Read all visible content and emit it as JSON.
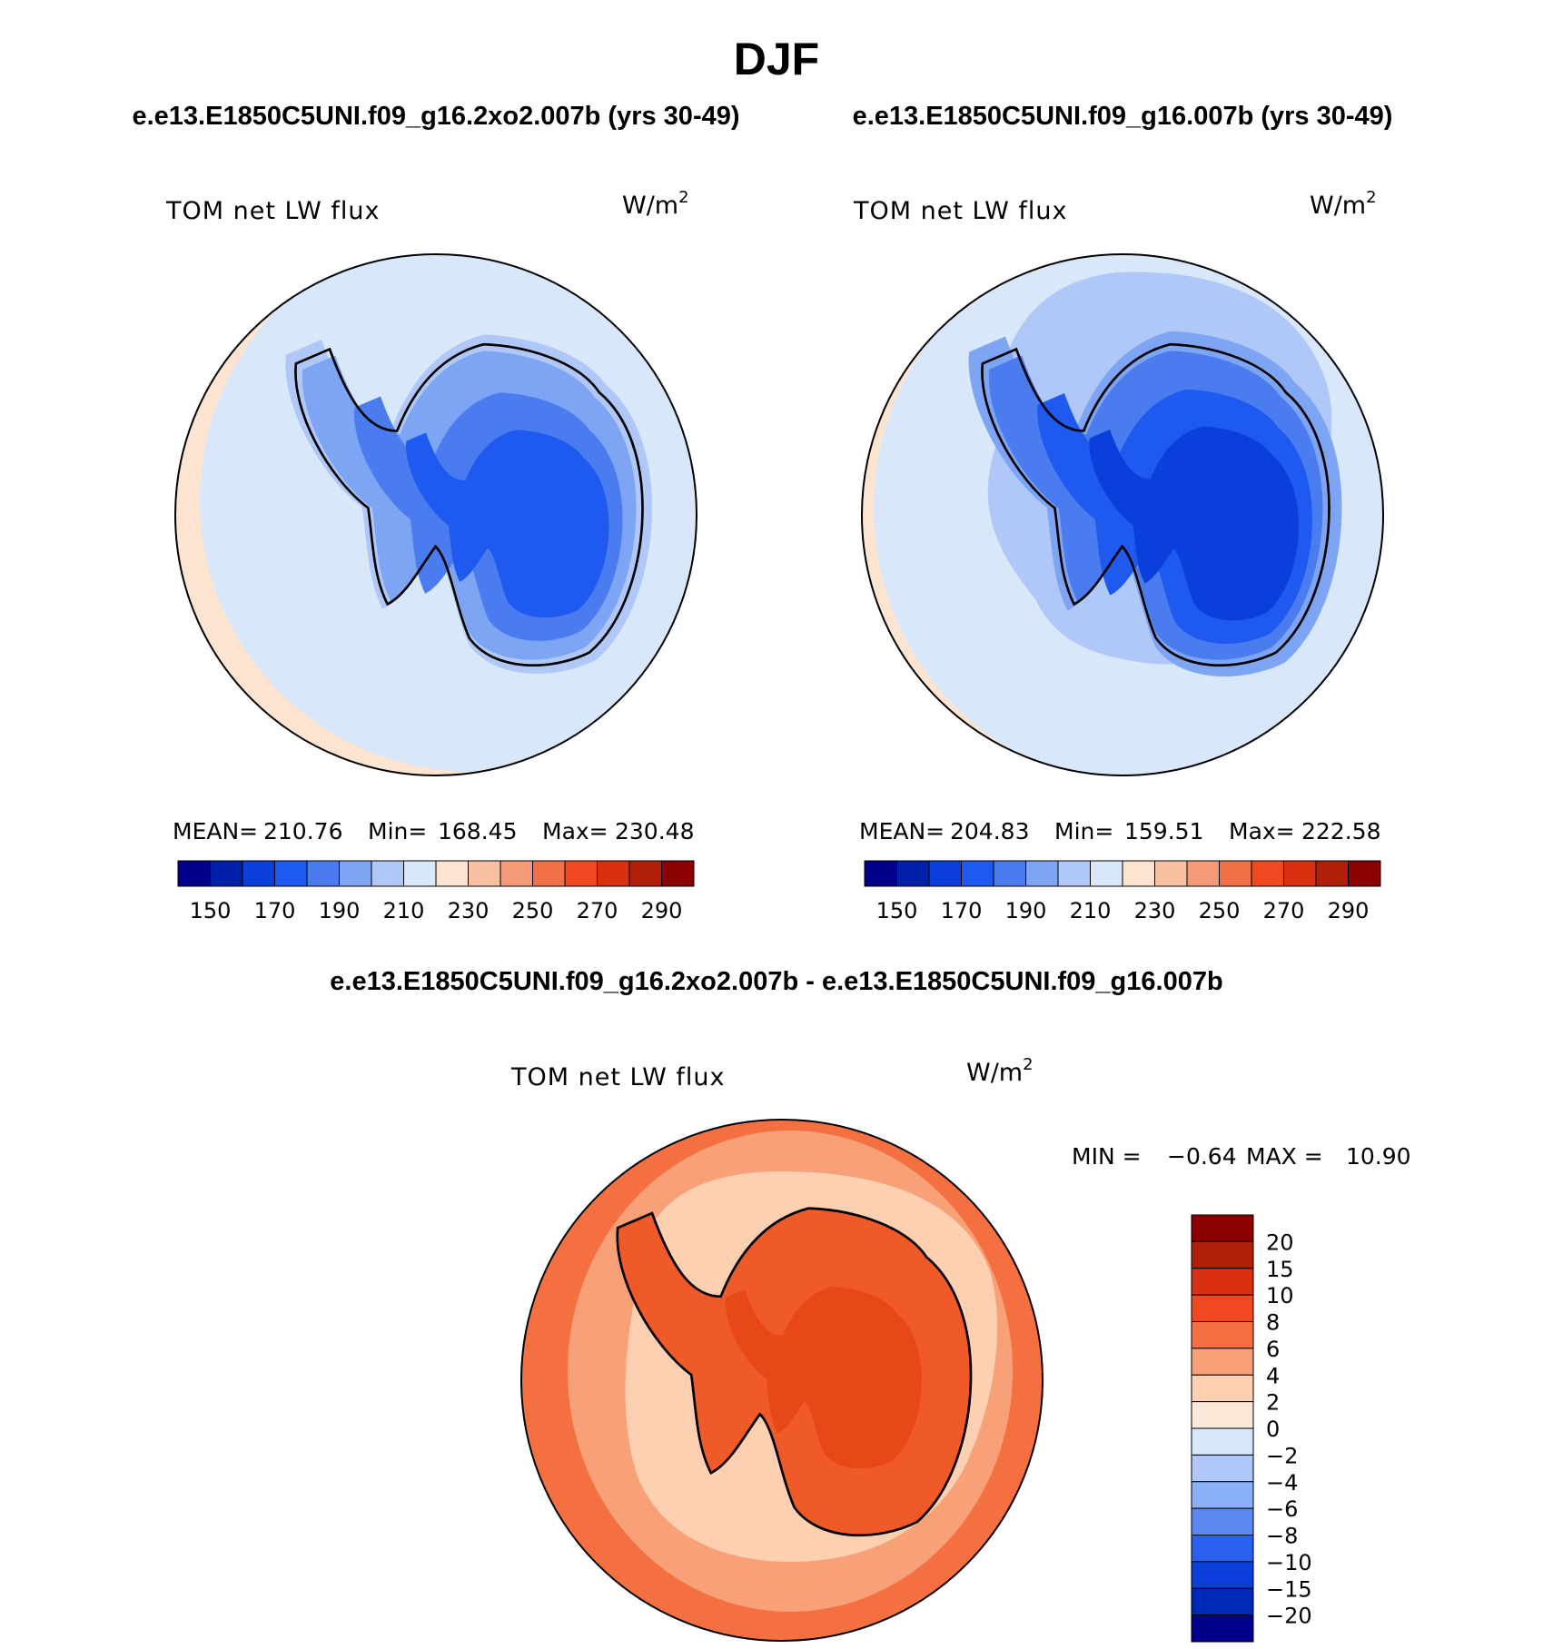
{
  "figure": {
    "title": "DJF"
  },
  "chart_data": [
    {
      "type": "heatmap",
      "subtitle": "e.e13.E1850C5UNI.f09_g16.2xo2.007b (yrs 30-49)",
      "variable": "TOM net LW flux",
      "units": "W/m",
      "units_exp": "2",
      "stats": {
        "mean_label": "MEAN=",
        "mean": "210.76",
        "min_label": "Min=",
        "min": "168.45",
        "max_label": "Max=",
        "max": "230.48"
      },
      "colorbar": {
        "orientation": "horizontal",
        "colors": [
          "#00008b",
          "#0020a8",
          "#0a3fdc",
          "#1e5af0",
          "#4a7cf0",
          "#7ea4f4",
          "#b0c8f8",
          "#d8e8fa",
          "#fce4d0",
          "#f8c0a0",
          "#f49a78",
          "#f07048",
          "#f04820",
          "#d83010",
          "#b02008",
          "#8b0000"
        ],
        "labels": [
          "150",
          "170",
          "190",
          "210",
          "230",
          "250",
          "270",
          "290"
        ]
      }
    },
    {
      "type": "heatmap",
      "subtitle": "e.e13.E1850C5UNI.f09_g16.007b (yrs 30-49)",
      "variable": "TOM net LW flux",
      "units": "W/m",
      "units_exp": "2",
      "stats": {
        "mean_label": "MEAN=",
        "mean": "204.83",
        "min_label": "Min=",
        "min": "159.51",
        "max_label": "Max=",
        "max": "222.58"
      },
      "colorbar": {
        "orientation": "horizontal",
        "colors": [
          "#00008b",
          "#0020a8",
          "#0a3fdc",
          "#1e5af0",
          "#4a7cf0",
          "#7ea4f4",
          "#b0c8f8",
          "#d8e8fa",
          "#fce4d0",
          "#f8c0a0",
          "#f49a78",
          "#f07048",
          "#f04820",
          "#d83010",
          "#b02008",
          "#8b0000"
        ],
        "labels": [
          "150",
          "170",
          "190",
          "210",
          "230",
          "250",
          "270",
          "290"
        ]
      }
    },
    {
      "type": "heatmap",
      "subtitle": "e.e13.E1850C5UNI.f09_g16.2xo2.007b - e.e13.E1850C5UNI.f09_g16.007b",
      "variable": "TOM net LW flux",
      "units": "W/m",
      "units_exp": "2",
      "stats": {
        "min_label": "MIN =",
        "min": "−0.64",
        "max_label": "MAX =",
        "max": "10.90"
      },
      "colorbar": {
        "orientation": "vertical",
        "colors_top_to_bottom": [
          "#8b0000",
          "#b02008",
          "#d83010",
          "#f04820",
          "#f47040",
          "#f8a078",
          "#fcd0b0",
          "#fce8d8",
          "#d8e8fa",
          "#b0c8f8",
          "#8ab0f8",
          "#5a88f0",
          "#2a60f0",
          "#0a3fdc",
          "#0028b8",
          "#00008b"
        ],
        "labels_top_to_bottom": [
          "20",
          "15",
          "10",
          "8",
          "6",
          "4",
          "2",
          "0",
          "−2",
          "−4",
          "−6",
          "−8",
          "−10",
          "−15",
          "−20"
        ]
      }
    }
  ],
  "colors": {
    "ocean_1": "#d8e8fa",
    "outer_1": "#fce4d0",
    "ocean_2": "#d8e8fa",
    "ring_2": "#b0c8f8",
    "outer_2": "#fce4d0",
    "diff_outer": "#f47040",
    "diff_mid": "#f8a078",
    "diff_ring": "#fcd0b0",
    "diff_land": "#f05a28",
    "diff_core": "#e84818"
  }
}
